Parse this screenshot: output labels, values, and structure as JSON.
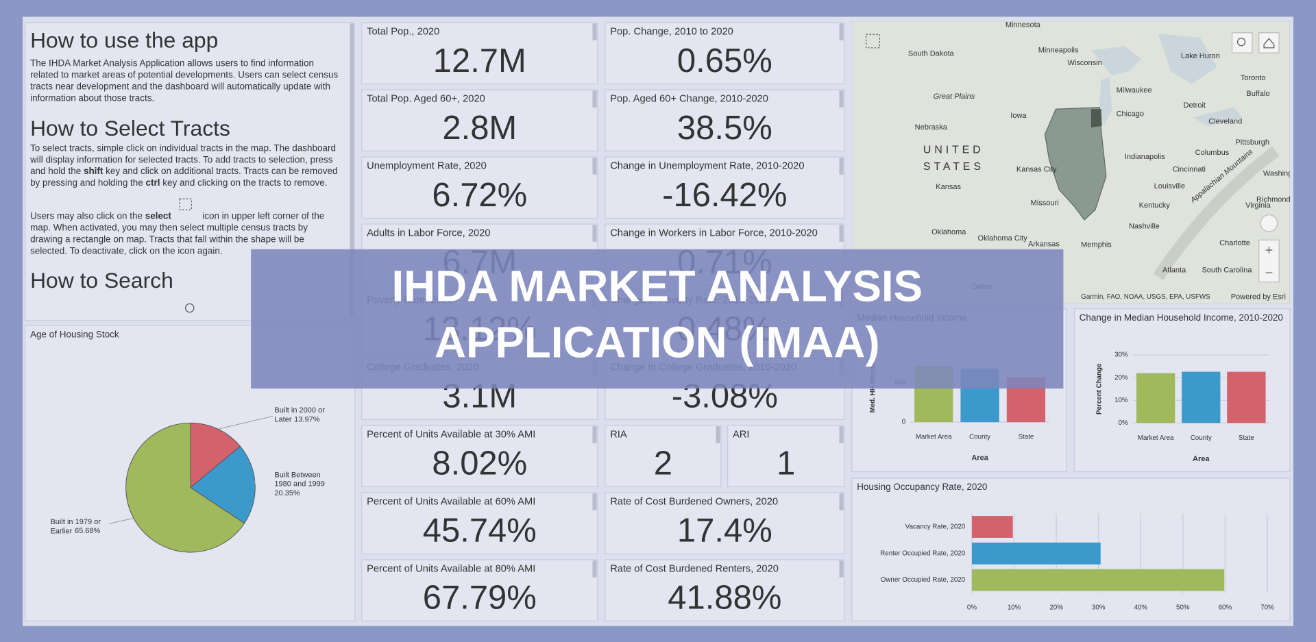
{
  "help": {
    "sections": [
      {
        "heading": "How to use the app",
        "paragraphs": [
          [
            "The IHDA Market Analysis Application allows users to find information",
            "related to market areas of potential developments. Users can select census",
            "tracts near development and the dashboard will automatically update with",
            "information about those tracts."
          ]
        ]
      },
      {
        "heading": "How to Select Tracts",
        "paragraphs": [
          [
            "To select tracts, simple click on individual tracts in the map. The dashboard",
            "will display information for selected tracts. To add tracts to selection, press",
            [
              "and hold the ",
              {
                "bold": "shift"
              },
              " key and click on additional tracts. Tracts can be removed"
            ],
            [
              "by pressing and holding the ",
              {
                "bold": "ctrl"
              },
              " key and clicking on the tracts to remove."
            ]
          ],
          [
            [
              "Users may also click on the ",
              {
                "bold": "select"
              },
              "icon in upper left corner of the"
            ],
            "map. When activated, you may then select multiple census tracts by",
            "drawing a rectangle on map. Tracts that fall within the shape will be",
            "selected. To deactivate, click on the icon again."
          ]
        ]
      },
      {
        "heading": "How to Search",
        "paragraphs": []
      }
    ]
  },
  "kpis": [
    {
      "label": "Total Pop., 2020",
      "value": "12.7M"
    },
    {
      "label": "Pop. Change, 2010 to 2020",
      "value": "0.65%"
    },
    {
      "label": "Total Pop. Aged 60+, 2020",
      "value": "2.8M"
    },
    {
      "label": "Pop. Aged 60+ Change, 2010-2020",
      "value": "38.5%"
    },
    {
      "label": "Unemployment Rate, 2020",
      "value": "6.72%"
    },
    {
      "label": "Change in Unemployment Rate, 2010-2020",
      "value": "-16.42%"
    },
    {
      "label": "Adults in Labor Force, 2020",
      "value": "6.7M"
    },
    {
      "label": "Change in Workers in Labor Force, 2010-2020",
      "value": "0.71%"
    },
    {
      "label": "Poverty Rate, 2020",
      "value": "13.12%"
    },
    {
      "label": "Change in Poverty Rate, 2010-2020",
      "value": "0.48%"
    },
    {
      "label": "College Graduates, 2020",
      "value": "3.1M"
    },
    {
      "label": "Change in College Graduates, 2010-2020",
      "value": "-3.08%"
    },
    {
      "label": "Percent of Units Available at 30% AMI",
      "value": "8.02%"
    },
    {
      "label": "RIA",
      "value": "2"
    },
    {
      "label": "ARI",
      "value": "1"
    },
    {
      "label": "Percent of Units Available at 60% AMI",
      "value": "45.74%"
    },
    {
      "label": "Rate of Cost Burdened Owners, 2020",
      "value": "17.4%"
    },
    {
      "label": "Percent of Units Available at 80% AMI",
      "value": "67.79%"
    },
    {
      "label": "Rate of Cost Burdened Renters, 2020",
      "value": "41.88%"
    }
  ],
  "map": {
    "labels": [
      "Minnesota",
      "South Dakota",
      "Minneapolis",
      "Wisconsin",
      "Lake Huron",
      "Toronto",
      "Buffalo",
      "Milwaukee",
      "Great Plains",
      "Detroit",
      "Iowa",
      "Chicago",
      "Cleveland",
      "Nebraska",
      "Pittsburgh",
      "UNITED",
      "STATES",
      "Indianapolis",
      "Columbus",
      "Kansas City",
      "Cincinnati",
      "Washington",
      "Kansas",
      "Louisville",
      "Virginia",
      "Richmond",
      "Missouri",
      "Kentucky",
      "Nashville",
      "Oklahoma",
      "Oklahoma City",
      "Arkansas",
      "Memphis",
      "Charlotte",
      "Atlanta",
      "South Carolina",
      "Appalachian Mountains",
      "Dallas"
    ],
    "attribution": "Garmin, FAO, NOAA, USGS, EPA, USFWS",
    "credit": "Powered by Esri"
  },
  "overlay": {
    "lines": [
      "IHDA MARKET ANALYSIS",
      "APPLICATION (IMAA)"
    ]
  },
  "chart_data": [
    {
      "type": "pie",
      "title": "Age of Housing Stock",
      "categories": [
        "Built in 2000 or Later",
        "Built Between 1980 and 1999",
        "Built in 1979 or Earlier"
      ],
      "values": [
        13.97,
        20.35,
        65.68
      ],
      "value_labels": [
        "13.97%",
        "20.35%",
        "65.68%"
      ],
      "colors": [
        "#d4626d",
        "#3b9acb",
        "#a0b95c"
      ]
    },
    {
      "type": "bar",
      "title": "Median Household Income",
      "ylabel": "Med. HH Income",
      "xlabel": "Area",
      "categories": [
        "Market Area",
        "County",
        "State"
      ],
      "values": [
        71000,
        68000,
        57000
      ],
      "colors": [
        "#a0b95c",
        "#3b9acb",
        "#d4626d"
      ],
      "ylim": [
        0,
        90000
      ],
      "yticks": [
        0,
        {
          "value": 50000,
          "label": "50k"
        }
      ]
    },
    {
      "type": "bar",
      "title": "Change in Median Household Income, 2010-2020",
      "ylabel": "Percent Change",
      "xlabel": "Area",
      "categories": [
        "Market Area",
        "County",
        "State"
      ],
      "values": [
        22,
        22.6,
        22.6
      ],
      "colors": [
        "#a0b95c",
        "#3b9acb",
        "#d4626d"
      ],
      "ylim": [
        0,
        30
      ],
      "yticks": [
        {
          "value": 0,
          "label": "0%"
        },
        {
          "value": 10,
          "label": "10%"
        },
        {
          "value": 20,
          "label": "20%"
        },
        {
          "value": 30,
          "label": "30%"
        }
      ]
    },
    {
      "type": "hbar",
      "title": "Housing Occupancy Rate, 2020",
      "categories": [
        "Vacancy Rate, 2020",
        "Renter Occupied Rate, 2020",
        "Owner Occupied Rate, 2020"
      ],
      "values": [
        9.7,
        30.5,
        59.8
      ],
      "colors": [
        "#d4626d",
        "#3b9acb",
        "#a0b95c"
      ],
      "xlim": [
        0,
        70
      ],
      "xticks": [
        {
          "value": 0,
          "label": "0%"
        },
        {
          "value": 10,
          "label": "10%"
        },
        {
          "value": 20,
          "label": "20%"
        },
        {
          "value": 30,
          "label": "30%"
        },
        {
          "value": 40,
          "label": "40%"
        },
        {
          "value": 50,
          "label": "50%"
        },
        {
          "value": 60,
          "label": "60%"
        },
        {
          "value": 70,
          "label": "70%"
        }
      ],
      "grid": true
    }
  ]
}
